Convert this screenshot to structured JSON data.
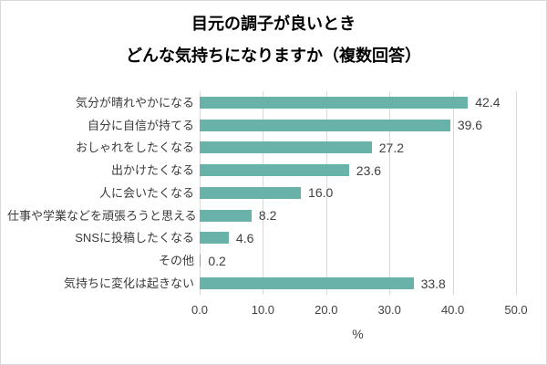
{
  "title": {
    "line1": "目元の調子が良いとき",
    "line2": "どんな気持ちになりますか（複数回答）"
  },
  "colors": {
    "bar": "#69b2a9",
    "gridline": "#d9d9d9",
    "axis_text": "#404040",
    "category_text": "#3a3a3a",
    "title_text": "#000000",
    "border": "#d9d9d9",
    "background": "#ffffff"
  },
  "chart_data": {
    "type": "bar",
    "orientation": "horizontal",
    "title": "目元の調子が良いとき どんな気持ちになりますか（複数回答）",
    "categories": [
      "気分が晴れやかになる",
      "自分に自信が持てる",
      "おしゃれをしたくなる",
      "出かけたくなる",
      "人に会いたくなる",
      "仕事や学業などを頑張ろうと思える",
      "SNSに投稿したくなる",
      "その他",
      "気持ちに変化は起きない"
    ],
    "values": [
      42.4,
      39.6,
      27.2,
      23.6,
      16.0,
      8.2,
      4.6,
      0.2,
      33.8
    ],
    "xlabel": "%",
    "xlim": [
      0,
      50
    ],
    "xticks": [
      0,
      10,
      20,
      30,
      40,
      50
    ],
    "grid": true,
    "value_labels": true,
    "legend": false
  }
}
